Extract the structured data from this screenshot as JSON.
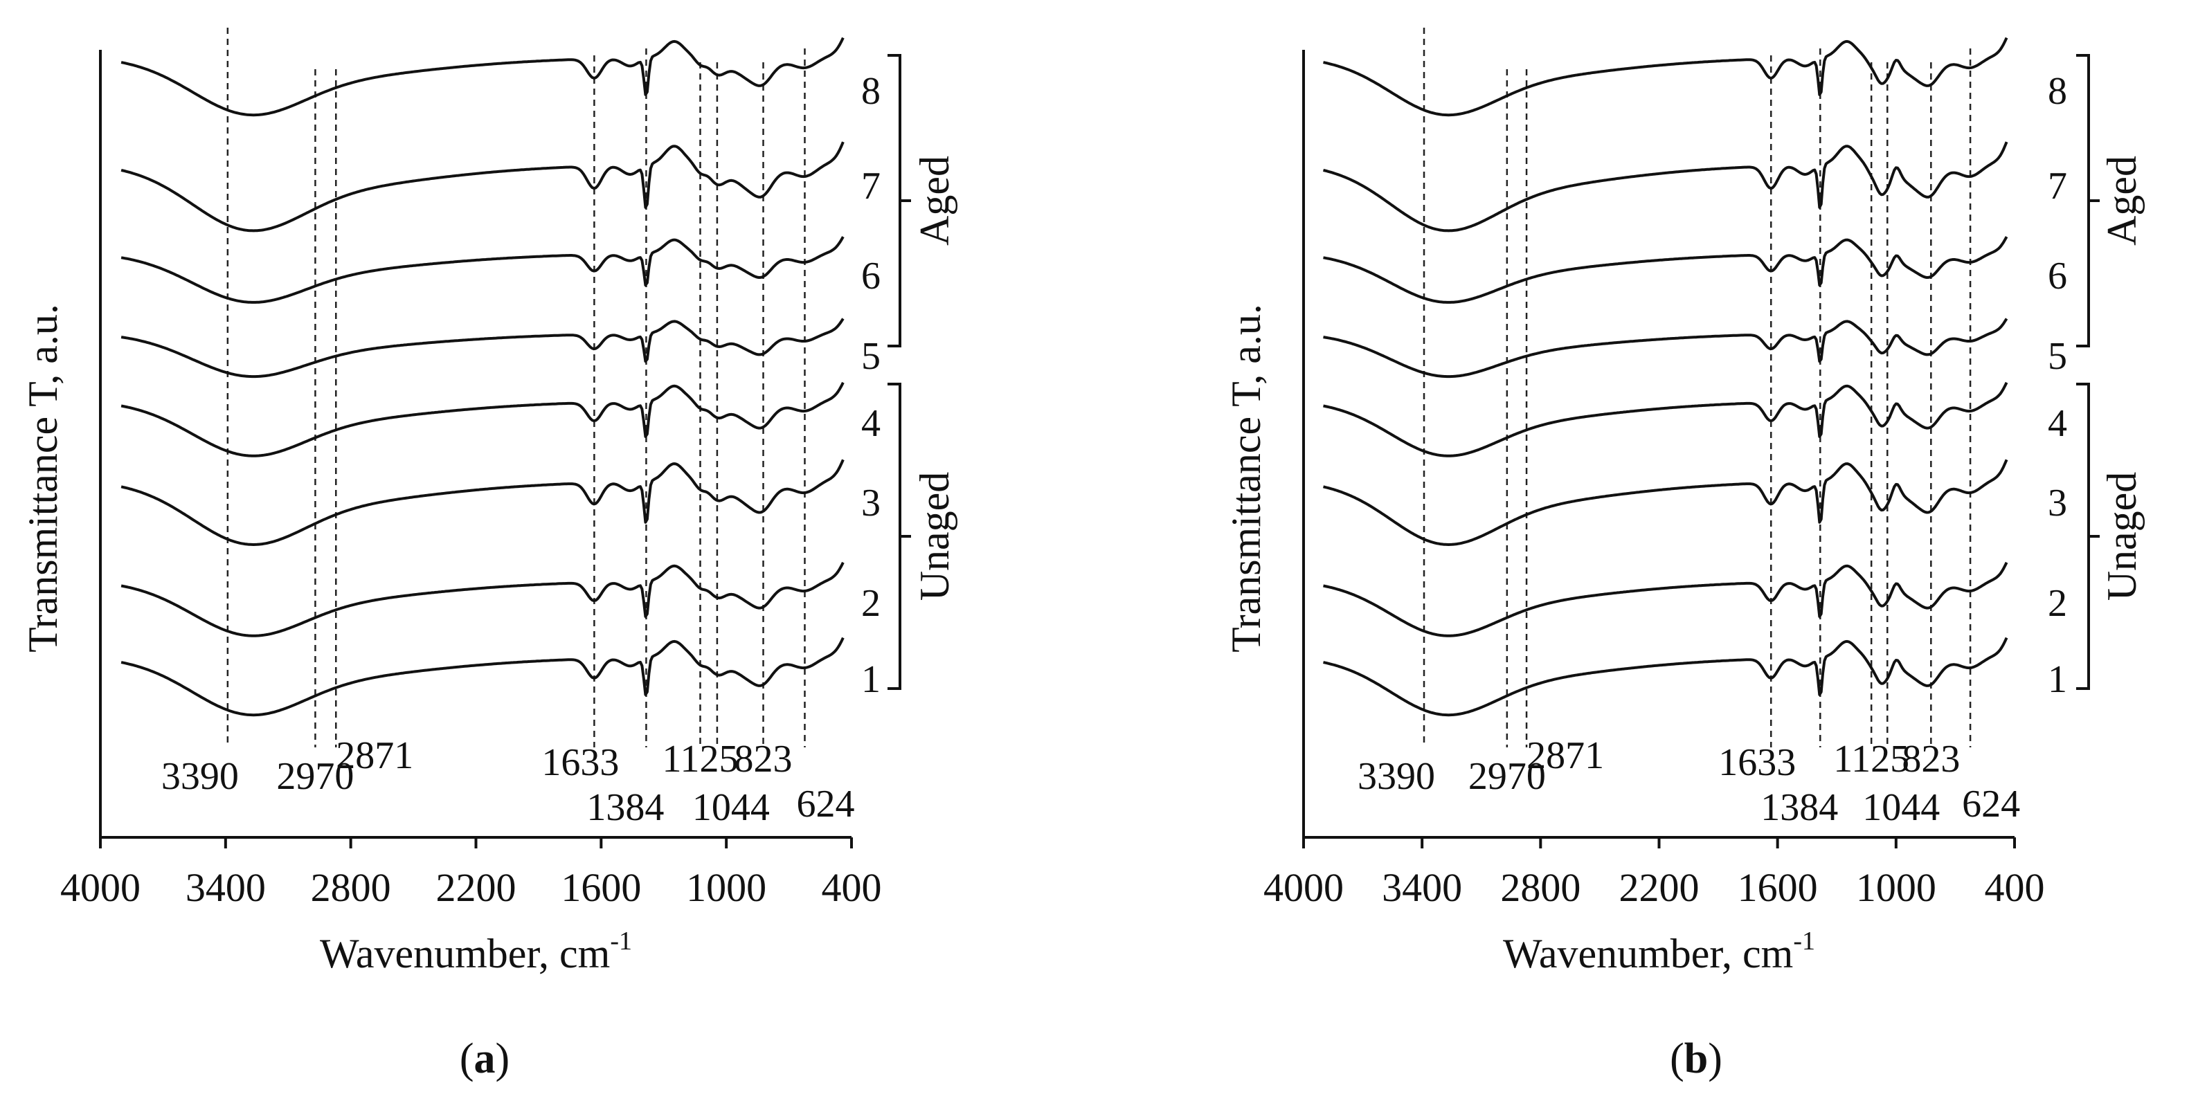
{
  "figure": {
    "panels": [
      {
        "id": "a",
        "caption_open": "(",
        "caption_letter": "a",
        "caption_close": ")",
        "groups": {
          "aged": "Aged",
          "unaged": "Unaged"
        }
      },
      {
        "id": "b",
        "caption_open": "(",
        "caption_letter": "b",
        "caption_close": ")",
        "groups": {
          "aged": "Aged",
          "unaged": "Unaged"
        }
      }
    ]
  },
  "chart_data": [
    {
      "type": "line",
      "panel": "a",
      "title": "",
      "xlabel": "Wavenumber, cm",
      "xlabel_sup": "-1",
      "ylabel": "Transmittance T, a.u.",
      "xlim": [
        4000,
        400
      ],
      "x_reversed": true,
      "x_ticks": [
        4000,
        3400,
        2800,
        2200,
        1600,
        1000,
        400
      ],
      "y_ticks": [],
      "grid": false,
      "peak_lines": [
        3390,
        2970,
        2871,
        1633,
        1384,
        1125,
        1044,
        823,
        624
      ],
      "peak_labels": [
        "3390",
        "2970",
        "2871",
        "1633",
        "1384",
        "1125",
        "1044",
        "823",
        "624"
      ],
      "series": [
        {
          "name": "1",
          "group": "Unaged"
        },
        {
          "name": "2",
          "group": "Unaged"
        },
        {
          "name": "3",
          "group": "Unaged"
        },
        {
          "name": "4",
          "group": "Unaged"
        },
        {
          "name": "5",
          "group": "Aged"
        },
        {
          "name": "6",
          "group": "Aged"
        },
        {
          "name": "7",
          "group": "Aged"
        },
        {
          "name": "8",
          "group": "Aged"
        }
      ]
    },
    {
      "type": "line",
      "panel": "b",
      "title": "",
      "xlabel": "Wavenumber, cm",
      "xlabel_sup": "-1",
      "ylabel": "Transmittance T, a.u.",
      "xlim": [
        4000,
        400
      ],
      "x_reversed": true,
      "x_ticks": [
        4000,
        3400,
        2800,
        2200,
        1600,
        1000,
        400
      ],
      "y_ticks": [],
      "grid": false,
      "peak_lines": [
        3390,
        2970,
        2871,
        1633,
        1384,
        1125,
        1044,
        823,
        624
      ],
      "peak_labels": [
        "3390",
        "2970",
        "2871",
        "1633",
        "1384",
        "1125",
        "1044",
        "823",
        "624"
      ],
      "series": [
        {
          "name": "1",
          "group": "Unaged"
        },
        {
          "name": "2",
          "group": "Unaged"
        },
        {
          "name": "3",
          "group": "Unaged"
        },
        {
          "name": "4",
          "group": "Unaged"
        },
        {
          "name": "5",
          "group": "Aged"
        },
        {
          "name": "6",
          "group": "Aged"
        },
        {
          "name": "7",
          "group": "Aged"
        },
        {
          "name": "8",
          "group": "Aged"
        }
      ]
    }
  ]
}
